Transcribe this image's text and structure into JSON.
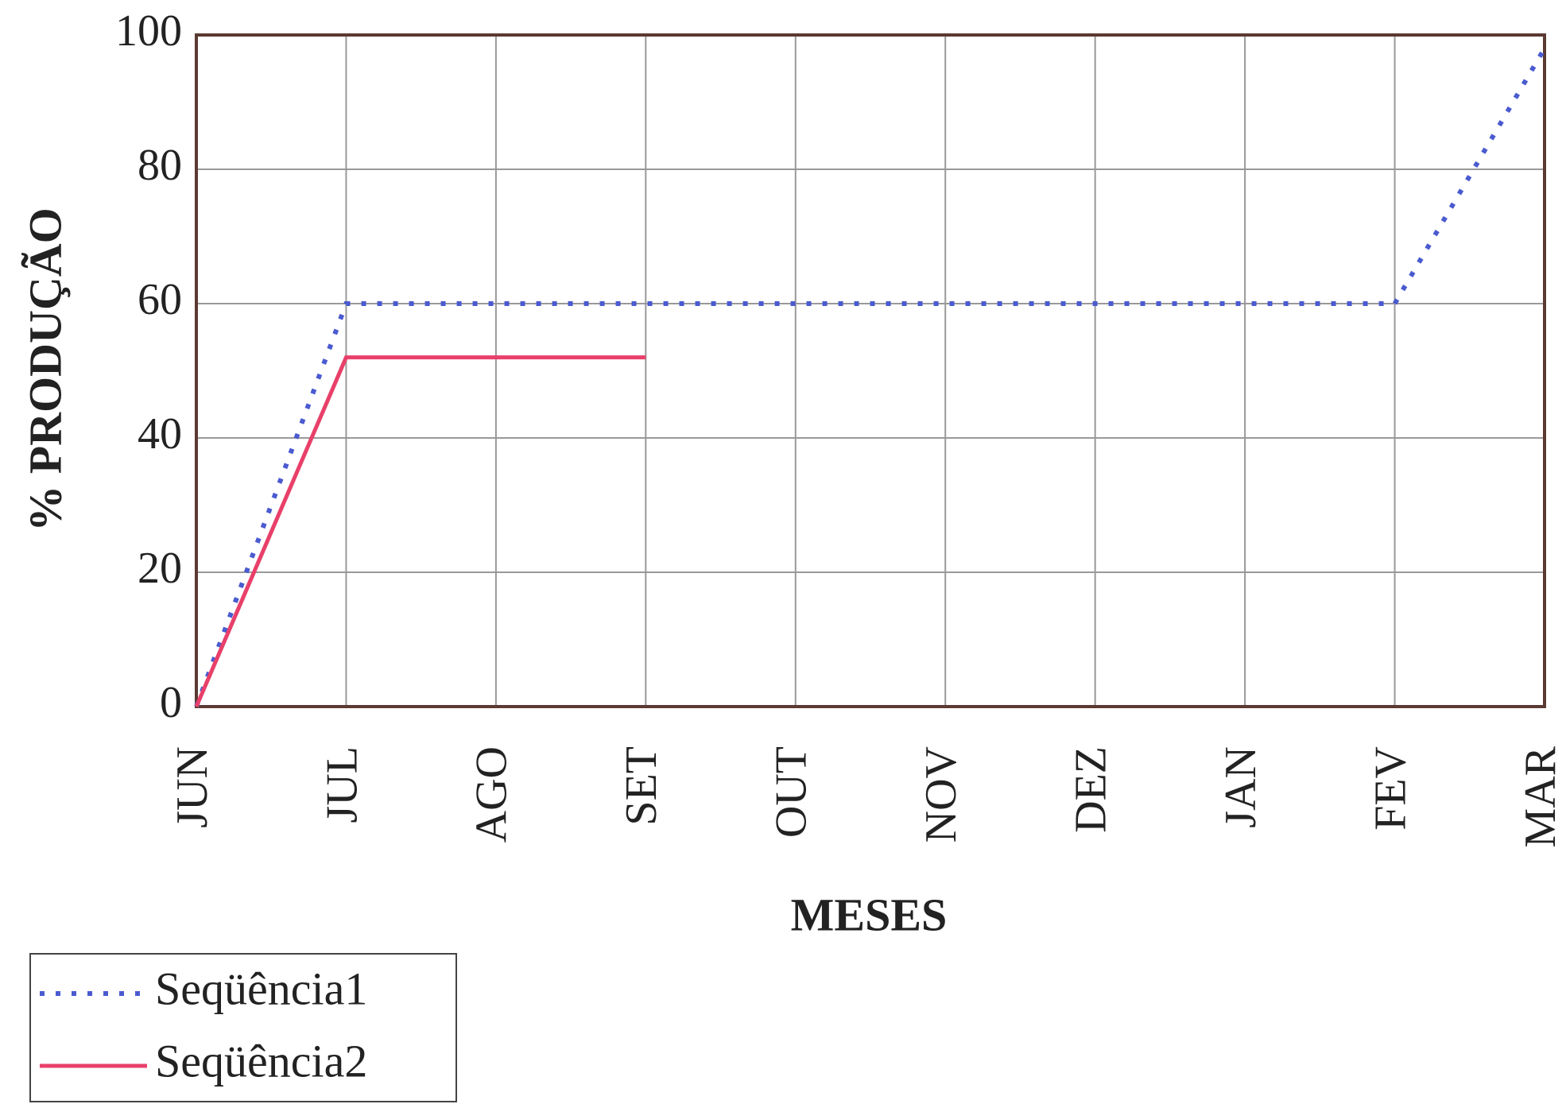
{
  "chart_data": {
    "type": "line",
    "x_label": "MESES",
    "y_label": "% PRODUÇÃO",
    "categories": [
      "JUN",
      "JUL",
      "AGO",
      "SET",
      "OUT",
      "NOV",
      "DEZ",
      "JAN",
      "FEV",
      "MAR"
    ],
    "series": [
      {
        "name": "Seqüência1",
        "color": "#4a5bd0",
        "dash": "dotted",
        "values": [
          0,
          60,
          60,
          60,
          60,
          60,
          60,
          60,
          60,
          98
        ]
      },
      {
        "name": "Seqüência2",
        "color": "#e8406a",
        "dash": "solid",
        "values": [
          0,
          52,
          52,
          52,
          null,
          null,
          null,
          null,
          null,
          null
        ]
      }
    ],
    "ylim": [
      0,
      100
    ],
    "yticks": [
      0,
      20,
      40,
      60,
      80,
      100
    ],
    "grid": true,
    "legend": "bottom-left"
  }
}
